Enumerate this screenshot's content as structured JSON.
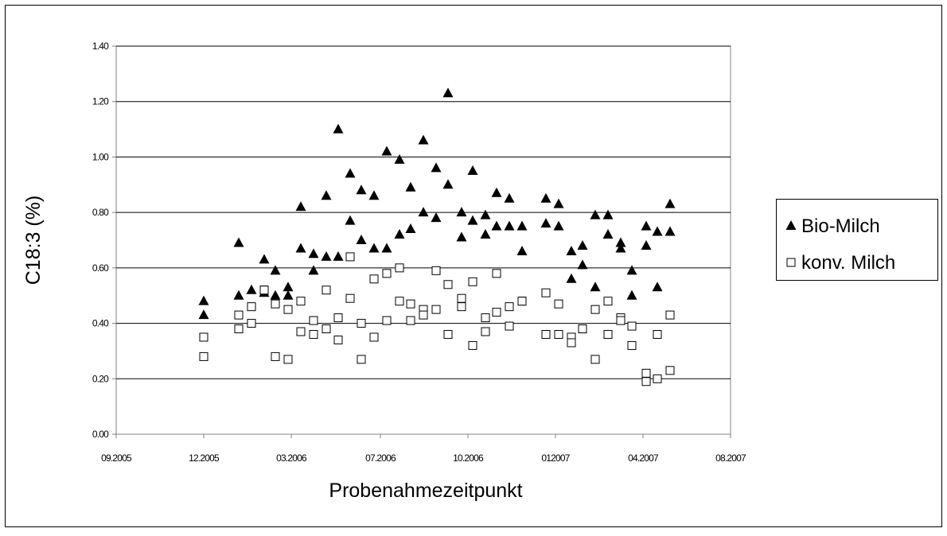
{
  "chart_data": {
    "type": "scatter",
    "x_label": "Probenahmezeitpunkt",
    "y_label": "C18:3 (%)",
    "xlim": [
      0,
      772
    ],
    "xticks": [
      {
        "value": 0,
        "label": "09.2005"
      },
      {
        "value": 110,
        "label": "12.2005"
      },
      {
        "value": 220,
        "label": "03.2006"
      },
      {
        "value": 332,
        "label": "07.2006"
      },
      {
        "value": 442,
        "label": "10.2006"
      },
      {
        "value": 552,
        "label": "012007"
      },
      {
        "value": 662,
        "label": "04.2007"
      },
      {
        "value": 772,
        "label": "08.2007"
      }
    ],
    "ylim": [
      0,
      1.4
    ],
    "yticks": [
      {
        "value": 0,
        "label": "0.00"
      },
      {
        "value": 0.2,
        "label": "0.20"
      },
      {
        "value": 0.4,
        "label": "0.40"
      },
      {
        "value": 0.6,
        "label": "0.60"
      },
      {
        "value": 0.8,
        "label": "0.80"
      },
      {
        "value": 1.0,
        "label": "1.00"
      },
      {
        "value": 1.2,
        "label": "1.20"
      },
      {
        "value": 1.4,
        "label": "1.40"
      }
    ],
    "grid": true,
    "legend": "right",
    "series": [
      {
        "name": "Bio-Milch",
        "color": "#000000",
        "marker": "triangle",
        "x": [
          110,
          110,
          154,
          154,
          170,
          186,
          186,
          200,
          200,
          216,
          216,
          232,
          232,
          248,
          248,
          264,
          264,
          279,
          279,
          294,
          294,
          308,
          308,
          324,
          324,
          340,
          340,
          356,
          356,
          370,
          370,
          386,
          386,
          402,
          402,
          417,
          417,
          434,
          434,
          448,
          448,
          464,
          464,
          478,
          478,
          494,
          494,
          510,
          510,
          540,
          540,
          556,
          556,
          572,
          572,
          586,
          586,
          602,
          602,
          618,
          618,
          634,
          634,
          648,
          648,
          666,
          666,
          680,
          680,
          696,
          696
        ],
        "y": [
          0.48,
          0.43,
          0.69,
          0.5,
          0.52,
          0.51,
          0.63,
          0.5,
          0.59,
          0.5,
          0.53,
          0.82,
          0.67,
          0.65,
          0.59,
          0.86,
          0.64,
          1.1,
          0.64,
          0.94,
          0.77,
          0.88,
          0.7,
          0.86,
          0.67,
          1.02,
          0.67,
          0.99,
          0.72,
          0.89,
          0.74,
          1.06,
          0.8,
          0.96,
          0.78,
          1.23,
          0.9,
          0.8,
          0.71,
          0.95,
          0.77,
          0.79,
          0.72,
          0.87,
          0.75,
          0.85,
          0.75,
          0.75,
          0.66,
          0.85,
          0.76,
          0.83,
          0.75,
          0.66,
          0.56,
          0.68,
          0.61,
          0.79,
          0.53,
          0.79,
          0.72,
          0.69,
          0.67,
          0.59,
          0.5,
          0.75,
          0.68,
          0.73,
          0.53,
          0.83,
          0.73
        ]
      },
      {
        "name": "konv. Milch",
        "color": "#000000",
        "marker": "square",
        "x": [
          110,
          110,
          154,
          154,
          170,
          170,
          186,
          186,
          200,
          200,
          216,
          216,
          232,
          232,
          248,
          248,
          264,
          264,
          279,
          279,
          294,
          294,
          308,
          308,
          324,
          324,
          340,
          340,
          356,
          356,
          370,
          370,
          386,
          386,
          402,
          402,
          417,
          417,
          434,
          434,
          448,
          448,
          464,
          464,
          478,
          478,
          494,
          494,
          510,
          510,
          540,
          540,
          556,
          556,
          572,
          572,
          586,
          586,
          602,
          602,
          618,
          618,
          634,
          634,
          648,
          648,
          666,
          666,
          680,
          680,
          696,
          696
        ],
        "y": [
          0.35,
          0.28,
          0.43,
          0.38,
          0.46,
          0.4,
          0.52,
          0.52,
          0.47,
          0.28,
          0.45,
          0.27,
          0.48,
          0.37,
          0.41,
          0.36,
          0.52,
          0.38,
          0.42,
          0.34,
          0.64,
          0.49,
          0.4,
          0.27,
          0.56,
          0.35,
          0.58,
          0.41,
          0.6,
          0.48,
          0.47,
          0.41,
          0.45,
          0.43,
          0.59,
          0.45,
          0.54,
          0.36,
          0.49,
          0.46,
          0.55,
          0.32,
          0.42,
          0.37,
          0.58,
          0.44,
          0.46,
          0.39,
          0.48,
          0.48,
          0.51,
          0.36,
          0.47,
          0.36,
          0.35,
          0.33,
          0.38,
          0.38,
          0.45,
          0.27,
          0.48,
          0.36,
          0.42,
          0.41,
          0.39,
          0.32,
          0.22,
          0.19,
          0.36,
          0.2,
          0.43,
          0.23
        ]
      }
    ]
  }
}
